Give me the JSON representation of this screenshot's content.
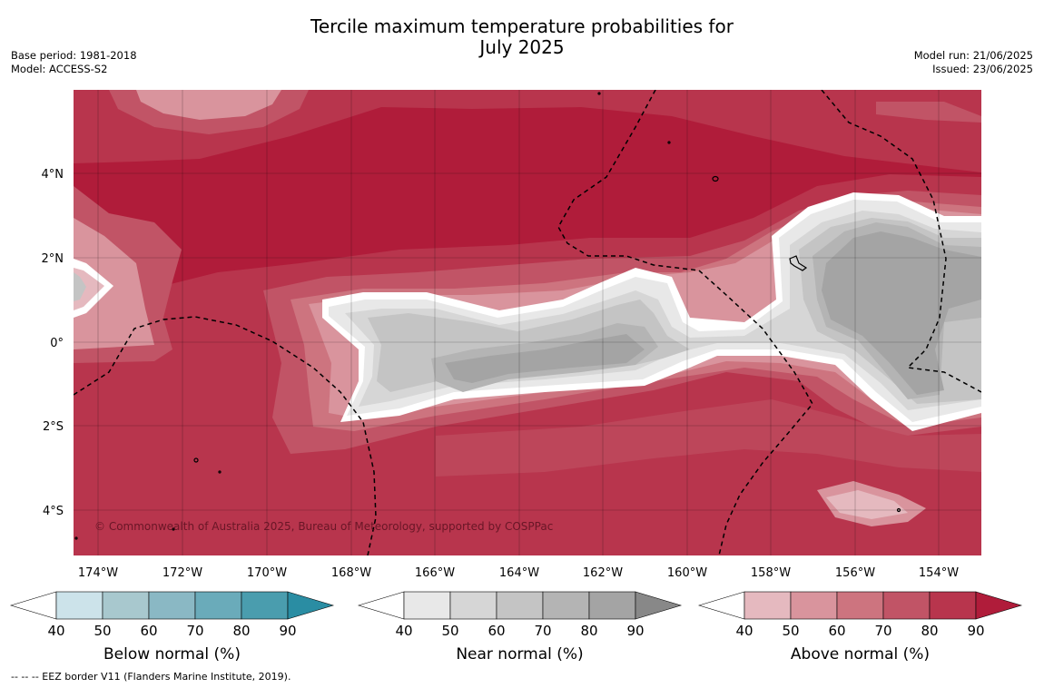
{
  "title_line1": "Tercile maximum temperature probabilities for",
  "title_line2": "July 2025",
  "base_period": "Base period: 1981-2018",
  "model": "Model: ACCESS-S2",
  "model_run": "Model run: 21/06/2025",
  "issued": "Issued: 23/06/2025",
  "copyright": "© Commonwealth of Australia 2025, Bureau of Meteorology, supported by COSPPac",
  "footer_note": "--  --  -- EEZ border V11 (Flanders Marine Institute, 2019).",
  "lon_labels": [
    "174°W",
    "172°W",
    "170°W",
    "168°W",
    "166°W",
    "164°W",
    "162°W",
    "160°W",
    "158°W",
    "156°W",
    "154°W"
  ],
  "lat_labels": [
    "4°N",
    "2°N",
    "0°",
    "2°S",
    "4°S"
  ],
  "colorbars": [
    {
      "name": "below",
      "label": "Below normal (%)",
      "ticks": [
        "40",
        "50",
        "60",
        "70",
        "80",
        "90"
      ],
      "colors": [
        "#cce3ea",
        "#a8c8ce",
        "#8ab8c4",
        "#6aabba",
        "#4a9dae",
        "#2a8da3"
      ]
    },
    {
      "name": "near",
      "label": "Near normal (%)",
      "ticks": [
        "40",
        "50",
        "60",
        "70",
        "80",
        "90"
      ],
      "colors": [
        "#e8e8e8",
        "#d6d6d6",
        "#c4c4c4",
        "#b4b4b4",
        "#a4a4a4",
        "#888888"
      ]
    },
    {
      "name": "above",
      "label": "Above normal (%)",
      "ticks": [
        "40",
        "50",
        "60",
        "70",
        "80",
        "90"
      ],
      "colors": [
        "#e5b9bf",
        "#d9949d",
        "#cd747f",
        "#c15466",
        "#b8354d",
        "#b01c3a"
      ]
    }
  ],
  "palette": {
    "above_40": "#e5b9bf",
    "above_50": "#d9949d",
    "above_60": "#cd747f",
    "above_70": "#c15466",
    "above_80": "#b8354d",
    "above_90": "#b01c3a",
    "near_40": "#e8e8e8",
    "near_50": "#d6d6d6",
    "near_60": "#c4c4c4",
    "near_70": "#b4b4b4",
    "near_80": "#a4a4a4"
  }
}
